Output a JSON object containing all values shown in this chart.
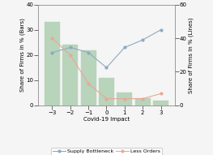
{
  "x": [
    -3,
    -2,
    -1,
    0,
    1,
    2,
    3
  ],
  "bar_values": [
    33,
    24,
    22,
    11,
    5,
    3,
    2
  ],
  "supply_bottleneck": [
    21,
    23,
    21,
    15,
    23,
    26,
    30
  ],
  "less_orders": [
    40,
    30,
    13,
    4,
    4,
    4,
    7
  ],
  "bar_color": "#b8d4bb",
  "supply_color": "#8eaabf",
  "less_orders_color": "#e8a898",
  "bar_edgecolor": "#b8d4bb",
  "left_ylim": [
    0,
    40
  ],
  "right_ylim": [
    0,
    60
  ],
  "left_yticks": [
    0,
    10,
    20,
    30,
    40
  ],
  "right_yticks": [
    0,
    20,
    40,
    60
  ],
  "xlabel": "Covid-19 Impact",
  "ylabel_left": "Share of Firms in % (Bars)",
  "ylabel_right": "Share of Firms in % (Lines)",
  "legend_labels": [
    "Supply Bottleneck",
    "Less Orders"
  ],
  "bg_color": "#f5f5f5",
  "tick_fontsize": 5,
  "label_fontsize": 5,
  "legend_fontsize": 4.5
}
